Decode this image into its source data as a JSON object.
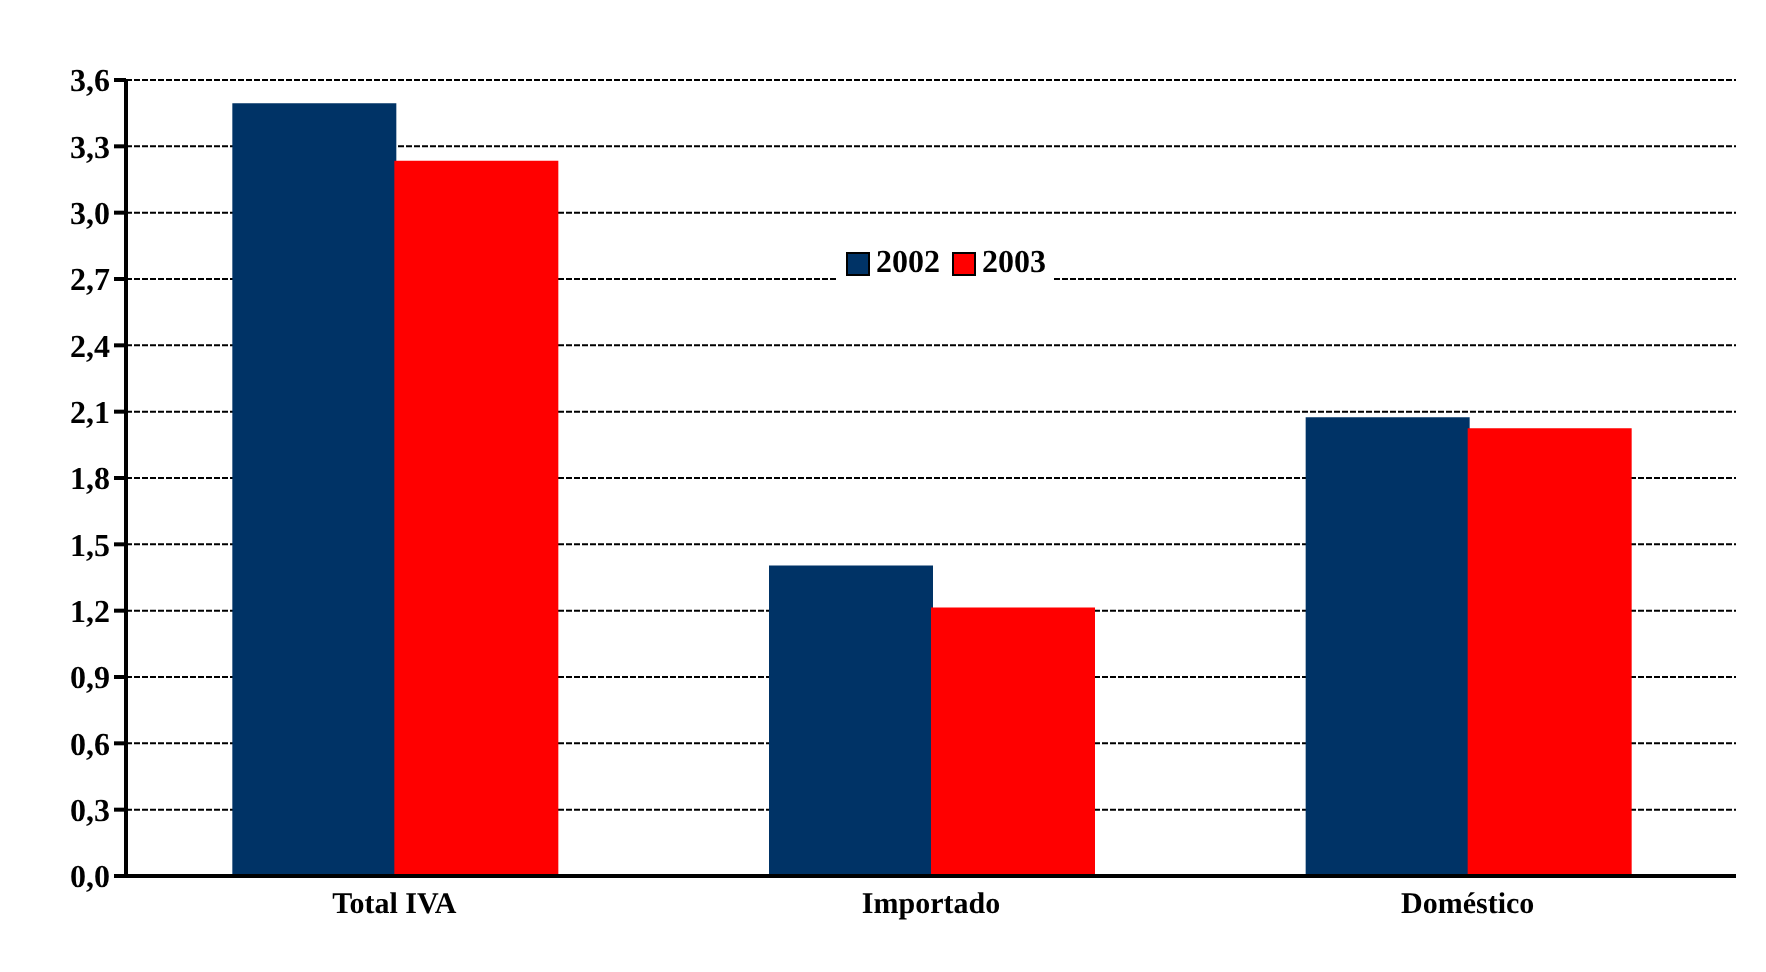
{
  "chart_data": {
    "type": "bar",
    "categories": [
      "Total IVA",
      "Importado",
      "Doméstico"
    ],
    "series": [
      {
        "name": "2002",
        "color": "#003366",
        "values": [
          3.49,
          1.4,
          2.07
        ]
      },
      {
        "name": "2003",
        "color": "#ff0000",
        "values": [
          3.23,
          1.21,
          2.02
        ]
      }
    ],
    "ylim": [
      0,
      3.6
    ],
    "yticks": [
      {
        "value": 0,
        "label": "0,0"
      },
      {
        "value": 0.3,
        "label": "0,3"
      },
      {
        "value": 0.6,
        "label": "0,6"
      },
      {
        "value": 0.9,
        "label": "0,9"
      },
      {
        "value": 1.2,
        "label": "1,2"
      },
      {
        "value": 1.5,
        "label": "1,5"
      },
      {
        "value": 1.8,
        "label": "1,8"
      },
      {
        "value": 2.1,
        "label": "2,1"
      },
      {
        "value": 2.4,
        "label": "2,4"
      },
      {
        "value": 2.7,
        "label": "2,7"
      },
      {
        "value": 3.0,
        "label": "3,0"
      },
      {
        "value": 3.3,
        "label": "3,3"
      },
      {
        "value": 3.6,
        "label": "3,6"
      }
    ],
    "grid": "y",
    "legend": "top"
  }
}
